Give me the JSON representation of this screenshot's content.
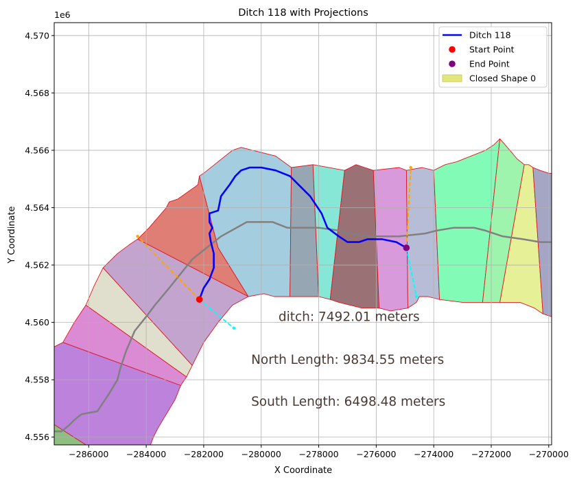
{
  "chart_data": {
    "type": "line",
    "title": "Ditch 118 with Projections",
    "xlabel": "X Coordinate",
    "ylabel": "Y Coordinate",
    "y_offset_label": "1e6",
    "xlim": [
      -287200,
      -269900
    ],
    "ylim": [
      4.55573,
      4.57045
    ],
    "x_ticks": [
      -286000,
      -284000,
      -282000,
      -280000,
      -278000,
      -276000,
      -274000,
      -272000,
      -270000
    ],
    "x_tick_labels": [
      "−286000",
      "−284000",
      "−282000",
      "−280000",
      "−278000",
      "−276000",
      "−274000",
      "−272000",
      "−270000"
    ],
    "y_ticks": [
      4.556,
      4.558,
      4.56,
      4.562,
      4.564,
      4.566,
      4.568,
      4.57
    ],
    "y_tick_labels": [
      "4.556",
      "4.558",
      "4.560",
      "4.562",
      "4.564",
      "4.566",
      "4.568",
      "4.570"
    ],
    "grid": true,
    "legend_position": "top-right",
    "legend": [
      {
        "label": "Ditch 118",
        "kind": "line",
        "color": "#0000ff"
      },
      {
        "label": "Start Point",
        "kind": "marker",
        "color": "#ff0000"
      },
      {
        "label": "End Point",
        "kind": "marker",
        "color": "#800080"
      },
      {
        "label": "Closed Shape 0",
        "kind": "patch",
        "color": "#e1e77f"
      }
    ],
    "annotations": [
      {
        "text": "ditch: 7492.01 meters",
        "x": -279400,
        "y": 4.56005
      },
      {
        "text": "North Length: 9834.55 meters",
        "x": -280350,
        "y": 4.55855
      },
      {
        "text": "South Length: 6498.48 meters",
        "x": -280350,
        "y": 4.5571
      }
    ],
    "polygons": [
      {
        "color": "#a4cde0",
        "points": [
          [
            -279000,
            4.5609
          ],
          [
            -278950,
            4.5654
          ],
          [
            -279500,
            4.5658
          ],
          [
            -280700,
            4.5661
          ],
          [
            -281000,
            4.566
          ],
          [
            -282000,
            4.5652
          ],
          [
            -282150,
            4.5651
          ],
          [
            -281500,
            4.5626
          ],
          [
            -280450,
            4.5609
          ],
          [
            -279900,
            4.561
          ],
          [
            -279550,
            4.5609
          ]
        ]
      },
      {
        "color": "#96a6b2",
        "points": [
          [
            -279000,
            4.5609
          ],
          [
            -278950,
            4.5654
          ],
          [
            -278200,
            4.5655
          ],
          [
            -278000,
            4.5609
          ],
          [
            -278500,
            4.5609
          ]
        ]
      },
      {
        "color": "#86e7d6",
        "points": [
          [
            -278000,
            4.5609
          ],
          [
            -278200,
            4.5655
          ],
          [
            -277100,
            4.5653
          ],
          [
            -277600,
            4.5608
          ]
        ]
      },
      {
        "color": "#9a7275",
        "points": [
          [
            -277600,
            4.5608
          ],
          [
            -277100,
            4.5653
          ],
          [
            -276700,
            4.5655
          ],
          [
            -276400,
            4.5654
          ],
          [
            -276100,
            4.5653
          ],
          [
            -275900,
            4.5605
          ],
          [
            -276500,
            4.5605
          ],
          [
            -277300,
            4.5607
          ]
        ]
      },
      {
        "color": "#d99adb",
        "points": [
          [
            -275900,
            4.5605
          ],
          [
            -276100,
            4.5653
          ],
          [
            -275200,
            4.5654
          ],
          [
            -274950,
            4.5653
          ],
          [
            -274900,
            4.5605
          ],
          [
            -275500,
            4.5604
          ]
        ]
      },
      {
        "color": "#b7bdd6",
        "points": [
          [
            -274900,
            4.5605
          ],
          [
            -274950,
            4.5653
          ],
          [
            -274400,
            4.5654
          ],
          [
            -274000,
            4.5653
          ],
          [
            -273800,
            4.5608
          ],
          [
            -274200,
            4.5609
          ],
          [
            -274500,
            4.5609
          ],
          [
            -274600,
            4.5607
          ]
        ]
      },
      {
        "color": "#82fbb7",
        "points": [
          [
            -273800,
            4.5608
          ],
          [
            -274000,
            4.5653
          ],
          [
            -273600,
            4.5655
          ],
          [
            -273200,
            4.5656
          ],
          [
            -272200,
            4.566
          ],
          [
            -271900,
            4.5662
          ],
          [
            -271700,
            4.5664
          ],
          [
            -272300,
            4.5607
          ],
          [
            -273000,
            4.5607
          ]
        ]
      },
      {
        "color": "#9ef4ad",
        "points": [
          [
            -272300,
            4.5607
          ],
          [
            -271700,
            4.5664
          ],
          [
            -271350,
            4.566
          ],
          [
            -271100,
            4.5657
          ],
          [
            -270850,
            4.5655
          ],
          [
            -271700,
            4.5607
          ]
        ]
      },
      {
        "color": "#e5f097",
        "points": [
          [
            -271700,
            4.5607
          ],
          [
            -270850,
            4.5655
          ],
          [
            -270700,
            4.5655
          ],
          [
            -270550,
            4.5654
          ],
          [
            -270200,
            4.5603
          ],
          [
            -270500,
            4.5605
          ],
          [
            -271000,
            4.5607
          ]
        ]
      },
      {
        "color": "#a4a6c4",
        "points": [
          [
            -270550,
            4.5654
          ],
          [
            -270300,
            4.5653
          ],
          [
            -270000,
            4.5652
          ],
          [
            -269900,
            4.5652
          ],
          [
            -269900,
            4.5602
          ],
          [
            -270200,
            4.5603
          ]
        ]
      },
      {
        "color": "#df7e74",
        "points": [
          [
            -280450,
            4.5609
          ],
          [
            -281500,
            4.5626
          ],
          [
            -282150,
            4.5651
          ],
          [
            -282200,
            4.5648
          ],
          [
            -282900,
            4.5643
          ],
          [
            -283200,
            4.5642
          ],
          [
            -283300,
            4.564
          ],
          [
            -283900,
            4.5633
          ],
          [
            -284300,
            4.5629
          ]
        ]
      },
      {
        "color": "#c2a4cf",
        "points": [
          [
            -284300,
            4.5629
          ],
          [
            -280450,
            4.5609
          ],
          [
            -281000,
            4.5606
          ],
          [
            -281500,
            4.56
          ],
          [
            -282000,
            4.5593
          ],
          [
            -282400,
            4.5585
          ],
          [
            -285500,
            4.5619
          ],
          [
            -285000,
            4.5624
          ],
          [
            -284600,
            4.5627
          ]
        ]
      },
      {
        "color": "#e0dfce",
        "points": [
          [
            -285500,
            4.5619
          ],
          [
            -282400,
            4.5585
          ],
          [
            -282600,
            4.5581
          ],
          [
            -286100,
            4.5606
          ],
          [
            -285800,
            4.5613
          ]
        ]
      },
      {
        "color": "#da8bd3",
        "points": [
          [
            -286100,
            4.5606
          ],
          [
            -282600,
            4.5581
          ],
          [
            -282800,
            4.5578
          ],
          [
            -286900,
            4.5593
          ],
          [
            -286500,
            4.56
          ]
        ]
      },
      {
        "color": "#bd82dc",
        "points": [
          [
            -286900,
            4.5593
          ],
          [
            -282800,
            4.5578
          ],
          [
            -283000,
            4.5573
          ],
          [
            -283300,
            4.5568
          ],
          [
            -283600,
            4.5563
          ],
          [
            -283750,
            4.556
          ],
          [
            -283900,
            4.5556
          ],
          [
            -285900,
            4.5556
          ],
          [
            -287300,
            4.5565
          ],
          [
            -287300,
            4.5591
          ]
        ]
      },
      {
        "color": "#8ebf80",
        "points": [
          [
            -287300,
            4.5565
          ],
          [
            -285900,
            4.5556
          ],
          [
            -287300,
            4.5556
          ]
        ]
      }
    ],
    "series": [
      {
        "name": "Ditch 118",
        "color": "#0000ff",
        "points": [
          [
            -282150,
            4.5608
          ],
          [
            -282000,
            4.5612
          ],
          [
            -281800,
            4.5615
          ],
          [
            -281650,
            4.5619
          ],
          [
            -281650,
            4.5624
          ],
          [
            -281750,
            4.5628
          ],
          [
            -281800,
            4.5631
          ],
          [
            -281700,
            4.5633
          ],
          [
            -281800,
            4.5635
          ],
          [
            -281800,
            4.5638
          ],
          [
            -281500,
            4.5639
          ],
          [
            -281400,
            4.5644
          ],
          [
            -281100,
            4.5648
          ],
          [
            -280900,
            4.5651
          ],
          [
            -280700,
            4.5653
          ],
          [
            -280400,
            4.5654
          ],
          [
            -280000,
            4.5654
          ],
          [
            -279500,
            4.5653
          ],
          [
            -279000,
            4.5651
          ],
          [
            -278700,
            4.5648
          ],
          [
            -278300,
            4.5644
          ],
          [
            -277900,
            4.5638
          ],
          [
            -277700,
            4.5633
          ],
          [
            -277300,
            4.563
          ],
          [
            -277000,
            4.5628
          ],
          [
            -276600,
            4.5628
          ],
          [
            -276300,
            4.5629
          ],
          [
            -275800,
            4.5629
          ],
          [
            -275300,
            4.5628
          ],
          [
            -274950,
            4.5626
          ]
        ]
      }
    ],
    "gray_series": {
      "color": "#808080",
      "points": [
        [
          -287300,
          4.5562
        ],
        [
          -286950,
          4.5562
        ],
        [
          -286700,
          4.5564
        ],
        [
          -286500,
          4.5566
        ],
        [
          -286250,
          4.5568
        ],
        [
          -285700,
          4.5569
        ],
        [
          -285300,
          4.5575
        ],
        [
          -285000,
          4.558
        ],
        [
          -284900,
          4.5584
        ],
        [
          -284700,
          4.559
        ],
        [
          -284400,
          4.5597
        ],
        [
          -284000,
          4.5602
        ],
        [
          -283700,
          4.5606
        ],
        [
          -283200,
          4.5612
        ],
        [
          -282800,
          4.5617
        ],
        [
          -282400,
          4.5622
        ],
        [
          -281900,
          4.5626
        ],
        [
          -281400,
          4.563
        ],
        [
          -280500,
          4.5635
        ],
        [
          -279600,
          4.5635
        ],
        [
          -279100,
          4.5633
        ],
        [
          -278000,
          4.5633
        ],
        [
          -277300,
          4.5632
        ],
        [
          -276900,
          4.5631
        ],
        [
          -276300,
          4.563
        ],
        [
          -275200,
          4.563
        ],
        [
          -274300,
          4.5631
        ],
        [
          -273900,
          4.5632
        ],
        [
          -273300,
          4.5633
        ],
        [
          -272600,
          4.5633
        ],
        [
          -272200,
          4.5632
        ],
        [
          -271600,
          4.563
        ],
        [
          -270900,
          4.5629
        ],
        [
          -270300,
          4.5628
        ],
        [
          -269900,
          4.5628
        ]
      ]
    },
    "start_point": {
      "x": -282150,
      "y": 4.5608,
      "color": "#ff0000"
    },
    "end_point": {
      "x": -274950,
      "y": 4.5626,
      "color": "#800080"
    },
    "projections": [
      {
        "color": "#ffa500",
        "points": [
          [
            -282150,
            4.5608
          ],
          [
            -284300,
            4.563
          ]
        ]
      },
      {
        "color": "#00ffff",
        "points": [
          [
            -282150,
            4.5608
          ],
          [
            -280950,
            4.5598
          ]
        ]
      },
      {
        "color": "#ffa500",
        "points": [
          [
            -274950,
            4.5626
          ],
          [
            -274800,
            4.5654
          ]
        ]
      },
      {
        "color": "#00ffff",
        "points": [
          [
            -274950,
            4.5626
          ],
          [
            -274600,
            4.5609
          ]
        ]
      }
    ]
  }
}
